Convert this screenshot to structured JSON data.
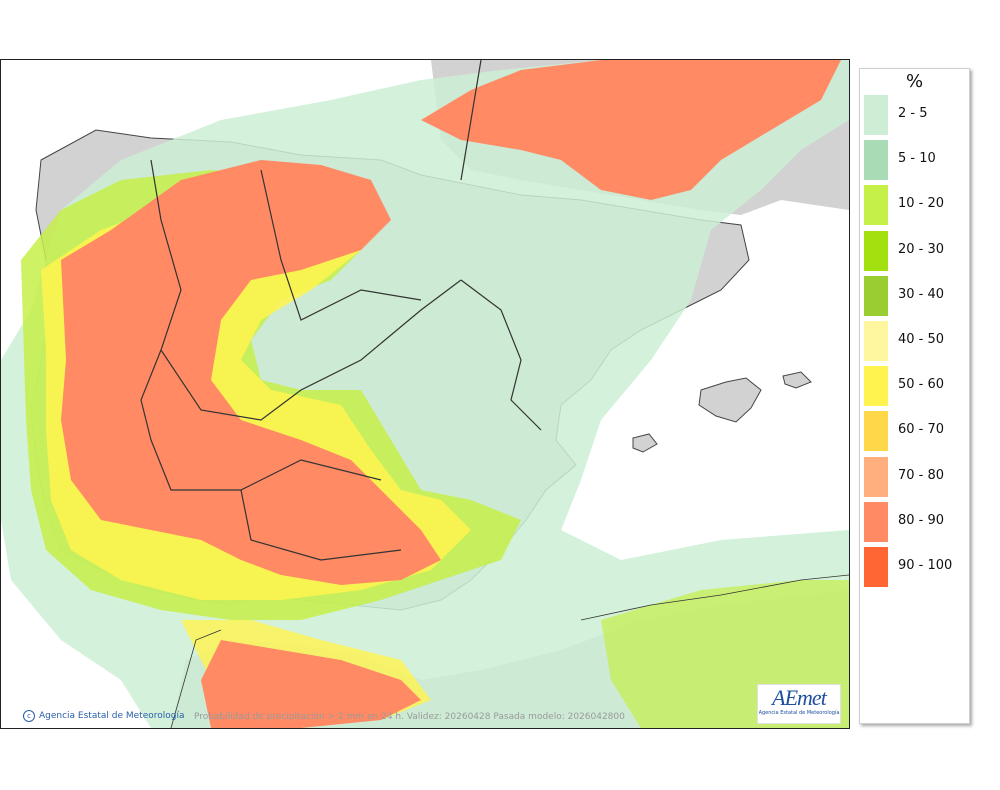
{
  "legend": {
    "title": "%",
    "items": [
      {
        "label": "2 - 5",
        "color": "#cdeed5"
      },
      {
        "label": "5 - 10",
        "color": "#a8dcb4"
      },
      {
        "label": "10 - 20",
        "color": "#c5f048"
      },
      {
        "label": "20 - 30",
        "color": "#a2e010"
      },
      {
        "label": "30 - 40",
        "color": "#9acd32"
      },
      {
        "label": "40 - 50",
        "color": "#fff7a0"
      },
      {
        "label": "50 - 60",
        "color": "#fff44f"
      },
      {
        "label": "60 - 70",
        "color": "#ffd84a"
      },
      {
        "label": "70 - 80",
        "color": "#ffae7e"
      },
      {
        "label": "80 - 90",
        "color": "#ff8a64"
      },
      {
        "label": "90 - 100",
        "color": "#ff6633"
      }
    ]
  },
  "footer": {
    "copyright_symbol": "c",
    "agency": "Agencia Estatal de Meteorología",
    "info": "Probabilidad de precipitación > 2 mm en 24 h. Validez: 20260428 Pasada modelo: 2026042800"
  },
  "logo": {
    "mark": "AEmet",
    "subtitle": "Agencia Estatal de Meteorología"
  },
  "colors": {
    "land": "#d4d4d4",
    "sea": "#ffffff",
    "borders": "#333333"
  }
}
